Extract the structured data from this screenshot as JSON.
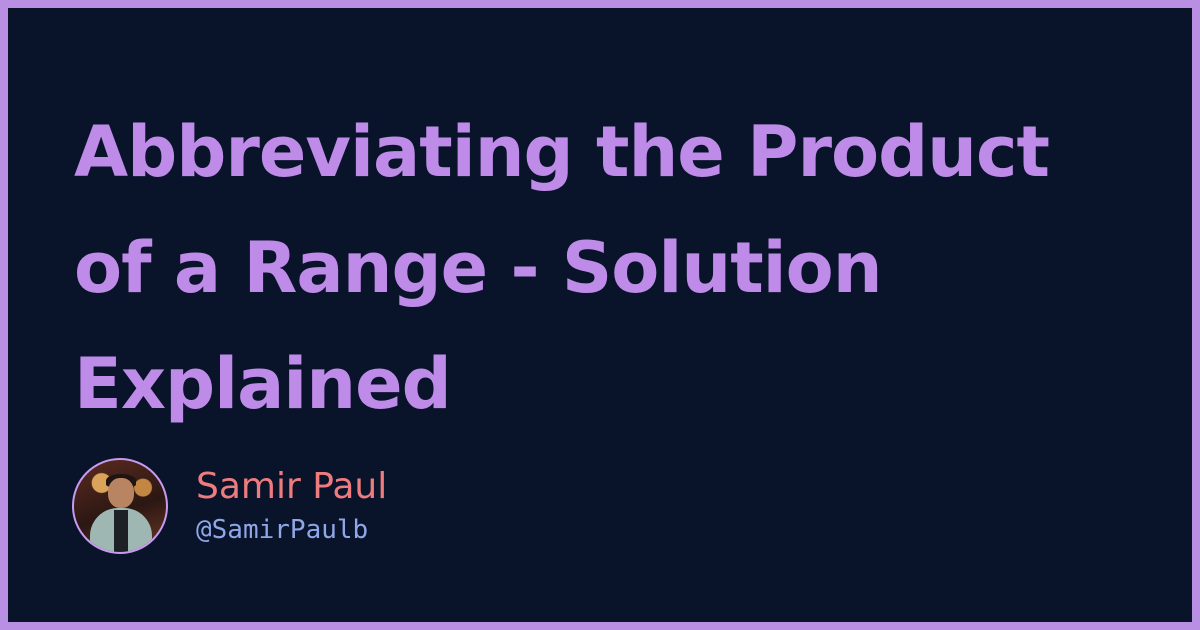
{
  "post": {
    "title_lines": [
      "Abbreviating the Product",
      "of a Range - Solution",
      "Explained"
    ]
  },
  "author": {
    "name": "Samir Paul",
    "handle": "@SamirPaulb",
    "avatar_icon": "avatar-photo-icon"
  },
  "colors": {
    "outer_border": "#b98fe4",
    "background": "#09142b",
    "title": "#bf8be8",
    "name": "#ee7c7f",
    "handle": "#8fa7e8"
  }
}
